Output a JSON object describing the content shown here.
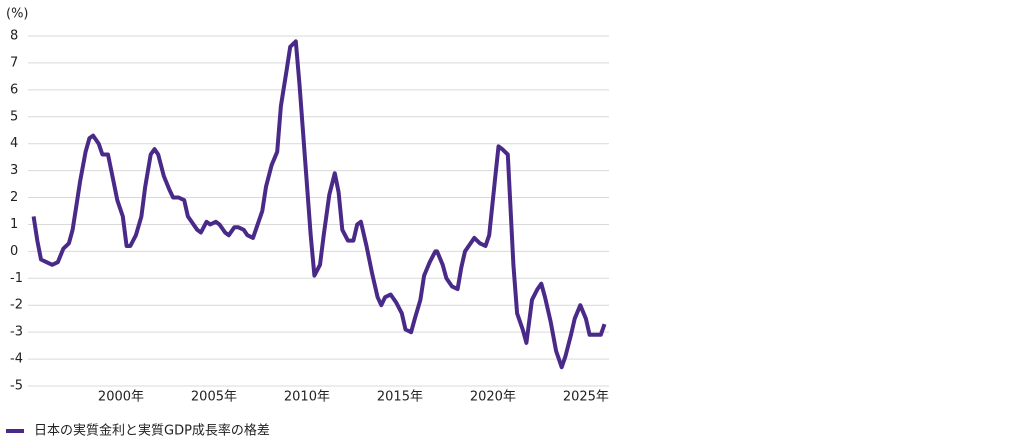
{
  "chart_data": {
    "type": "line",
    "y_unit_label": "(%)",
    "x": [
      1995.3,
      1995.5,
      1995.7,
      1996.0,
      1996.3,
      1996.6,
      1996.9,
      1997.2,
      1997.4,
      1997.6,
      1997.8,
      1998.1,
      1998.3,
      1998.5,
      1998.8,
      1999.0,
      1999.3,
      1999.6,
      1999.8,
      2000.1,
      2000.3,
      2000.5,
      2000.8,
      2001.1,
      2001.3,
      2001.6,
      2001.8,
      2002.0,
      2002.3,
      2002.6,
      2002.8,
      2003.1,
      2003.4,
      2003.6,
      2003.8,
      2004.1,
      2004.3,
      2004.6,
      2004.8,
      2005.1,
      2005.3,
      2005.6,
      2005.8,
      2006.1,
      2006.3,
      2006.6,
      2006.8,
      2007.1,
      2007.3,
      2007.6,
      2007.8,
      2008.1,
      2008.4,
      2008.6,
      2008.9,
      2009.1,
      2009.4,
      2009.6,
      2009.9,
      2010.2,
      2010.4,
      2010.7,
      2010.9,
      2011.2,
      2011.5,
      2011.7,
      2011.9,
      2012.2,
      2012.5,
      2012.7,
      2012.9,
      2013.2,
      2013.5,
      2013.8,
      2014.0,
      2014.2,
      2014.5,
      2014.8,
      2015.1,
      2015.3,
      2015.6,
      2015.8,
      2016.1,
      2016.3,
      2016.6,
      2016.9,
      2017.0,
      2017.3,
      2017.5,
      2017.8,
      2018.1,
      2018.3,
      2018.5,
      2018.8,
      2019.0,
      2019.3,
      2019.6,
      2019.8,
      2020.1,
      2020.3,
      2020.5,
      2020.8,
      2021.1,
      2021.3,
      2021.6,
      2021.8,
      2022.1,
      2022.4,
      2022.6,
      2022.8,
      2023.1,
      2023.4,
      2023.7,
      2023.9,
      2024.2,
      2024.4,
      2024.7,
      2025.0,
      2025.2,
      2025.5,
      2025.8,
      2026.0
    ],
    "series": [
      {
        "name": "日本の実質金利と実質GDP成長率の格差",
        "color": "#4a2a88",
        "values": [
          1.3,
          0.4,
          -0.3,
          -0.4,
          -0.5,
          -0.4,
          0.1,
          0.3,
          0.8,
          1.7,
          2.6,
          3.7,
          4.2,
          4.3,
          4.0,
          3.6,
          3.6,
          2.6,
          1.9,
          1.3,
          0.2,
          0.2,
          0.6,
          1.3,
          2.4,
          3.6,
          3.8,
          3.6,
          2.8,
          2.3,
          2.0,
          2.0,
          1.9,
          1.3,
          1.1,
          0.8,
          0.7,
          1.1,
          1.0,
          1.1,
          1.0,
          0.7,
          0.6,
          0.9,
          0.9,
          0.8,
          0.6,
          0.5,
          0.9,
          1.5,
          2.4,
          3.2,
          3.7,
          5.4,
          6.7,
          7.6,
          7.8,
          6.2,
          3.4,
          0.6,
          -0.9,
          -0.5,
          0.6,
          2.1,
          2.9,
          2.2,
          0.8,
          0.4,
          0.4,
          1.0,
          1.1,
          0.2,
          -0.8,
          -1.7,
          -2.0,
          -1.7,
          -1.6,
          -1.9,
          -2.3,
          -2.9,
          -3.0,
          -2.5,
          -1.8,
          -0.9,
          -0.4,
          0.0,
          0.0,
          -0.5,
          -1.0,
          -1.3,
          -1.4,
          -0.6,
          0.0,
          0.3,
          0.5,
          0.3,
          0.2,
          0.6,
          2.6,
          3.9,
          3.8,
          3.6,
          -0.5,
          -2.3,
          -2.9,
          -3.4,
          -1.8,
          -1.4,
          -1.2,
          -1.7,
          -2.6,
          -3.7,
          -4.3,
          -3.9,
          -3.1,
          -2.5,
          -2.0,
          -2.5,
          -3.1,
          -3.1,
          -3.1,
          -2.7
        ]
      }
    ],
    "xlim": [
      1995,
      2026.35
    ],
    "xticks": [
      {
        "value": 2000,
        "label": "2000年"
      },
      {
        "value": 2005,
        "label": "2005年"
      },
      {
        "value": 2010,
        "label": "2010年"
      },
      {
        "value": 2015,
        "label": "2015年"
      },
      {
        "value": 2020,
        "label": "2020年"
      },
      {
        "value": 2025,
        "label": "2025年"
      }
    ],
    "ylim": [
      -5,
      8
    ],
    "yticks": [
      -5,
      -4,
      -3,
      -2,
      -1,
      0,
      1,
      2,
      3,
      4,
      5,
      6,
      7,
      8
    ],
    "grid": true
  }
}
